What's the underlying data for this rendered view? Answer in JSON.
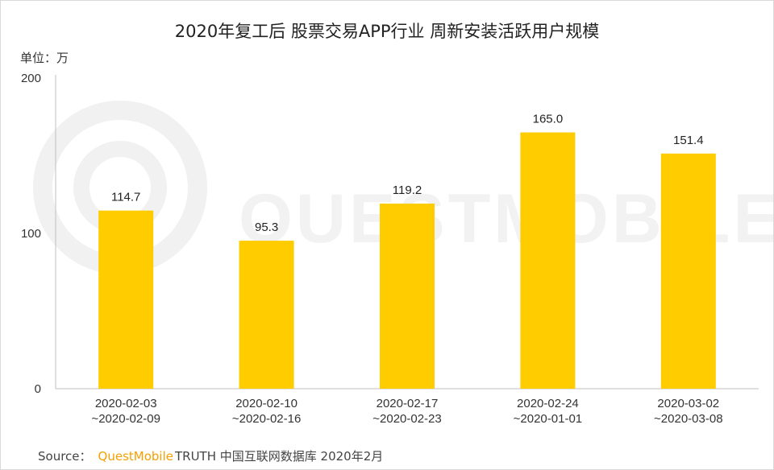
{
  "chart_data": {
    "type": "bar",
    "title": "2020年复工后 股票交易APP行业 周新安装活跃用户规模",
    "unit_label": "单位：万",
    "categories": [
      [
        "2020-02-03",
        "~2020-02-09"
      ],
      [
        "2020-02-10",
        "~2020-02-16"
      ],
      [
        "2020-02-17",
        "~2020-02-23"
      ],
      [
        "2020-02-24",
        "~2020-01-01"
      ],
      [
        "2020-03-02",
        "~2020-03-08"
      ]
    ],
    "values": [
      114.7,
      95.3,
      119.2,
      165.0,
      151.4
    ],
    "value_labels": [
      "114.7",
      "95.3",
      "119.2",
      "165.0",
      "151.4"
    ],
    "y_ticks": [
      "0",
      "100",
      "200"
    ],
    "ylim": [
      0,
      200
    ],
    "grid": false,
    "colors": {
      "bar": "#ffcc00",
      "axis": "#bfbfbf",
      "brand": "#f5a000"
    }
  },
  "watermark": {
    "text": "QUESTMOBILE"
  },
  "source": {
    "prefix": "Source：",
    "brand": "QuestMobile",
    "rest": "TRUTH 中国互联网数据库 2020年2月"
  }
}
